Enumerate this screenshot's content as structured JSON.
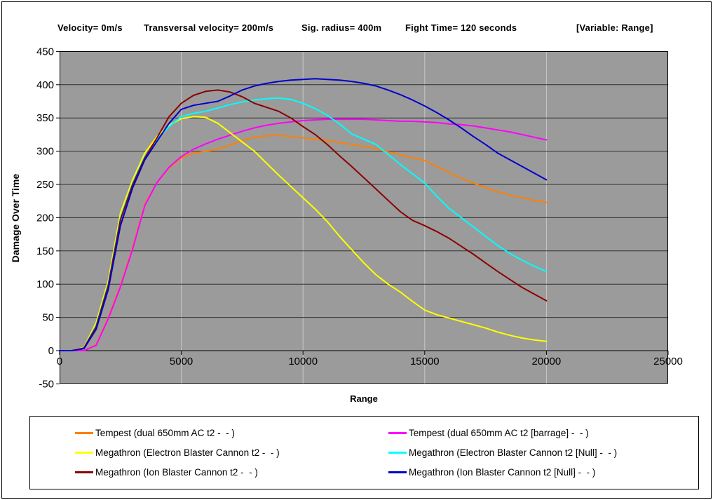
{
  "header": {
    "segments": [
      "Velocity= 0m/s",
      "Transversal velocity= 200m/s",
      "Sig. radius= 400m",
      "Fight Time= 120 seconds",
      "[Variable: Range]"
    ]
  },
  "chart_data": {
    "type": "line",
    "title": "",
    "xlabel": "Range",
    "ylabel": "Damage Over Time",
    "xlim": [
      0,
      25000
    ],
    "ylim": [
      -50,
      450
    ],
    "xticks": [
      0,
      5000,
      10000,
      15000,
      20000,
      25000
    ],
    "yticks": [
      450,
      400,
      350,
      300,
      250,
      200,
      150,
      100,
      50,
      0,
      -50
    ],
    "grid": {
      "horizontal": true,
      "vertical": true
    },
    "legend_position": "bottom",
    "x": [
      0,
      500,
      1000,
      1500,
      2000,
      2500,
      3000,
      3500,
      4000,
      4500,
      5000,
      5500,
      6000,
      6500,
      7000,
      7500,
      8000,
      8500,
      9000,
      9500,
      10000,
      10500,
      11000,
      11500,
      12000,
      12500,
      13000,
      13500,
      14000,
      14500,
      15000,
      15500,
      16000,
      16500,
      17000,
      17500,
      18000,
      18500,
      19000,
      19500,
      20000
    ],
    "series": [
      {
        "name": "Tempest (dual 650mm AC t2 -  - )",
        "color": "#FF8000",
        "values": [
          0,
          0,
          0,
          9,
          50,
          98,
          155,
          220,
          253,
          275,
          290,
          297,
          300,
          303,
          309,
          316,
          321,
          323,
          324,
          322,
          320,
          318,
          316,
          313,
          310,
          307,
          304,
          299,
          295,
          290,
          286,
          277,
          268,
          259,
          252,
          245,
          239,
          234,
          230,
          226,
          223
        ]
      },
      {
        "name": "Tempest (dual 650mm AC t2 [barrage] -  - )",
        "color": "#FF00FF",
        "values": [
          0,
          0,
          0,
          8,
          48,
          96,
          153,
          218,
          253,
          276,
          292,
          303,
          311,
          318,
          324,
          330,
          335,
          339,
          342,
          344,
          346,
          347,
          348,
          348,
          348,
          348,
          347,
          346,
          345,
          345,
          344,
          343,
          341,
          340,
          338,
          335,
          332,
          329,
          325,
          321,
          317
        ]
      },
      {
        "name": "Megathron (Electron Blaster Cannon t2 -  - )",
        "color": "#FFFF00",
        "values": [
          0,
          0,
          5,
          42,
          105,
          207,
          257,
          297,
          322,
          339,
          349,
          352,
          351,
          342,
          328,
          314,
          300,
          282,
          264,
          247,
          230,
          213,
          194,
          172,
          152,
          132,
          114,
          100,
          88,
          74,
          61,
          54,
          49,
          44,
          39,
          34,
          28,
          23,
          19,
          16,
          14
        ]
      },
      {
        "name": "Megathron (Electron Blaster Cannon t2 [Null] -  - )",
        "color": "#00FFFF",
        "values": [
          0,
          0,
          4,
          38,
          100,
          200,
          252,
          292,
          318,
          337,
          352,
          357,
          360,
          365,
          370,
          374,
          377,
          379,
          380,
          378,
          372,
          364,
          354,
          341,
          326,
          318,
          310,
          295,
          280,
          266,
          252,
          232,
          214,
          200,
          186,
          172,
          158,
          146,
          136,
          127,
          119
        ]
      },
      {
        "name": "Megathron (Ion Blaster Cannon t2 -  - )",
        "color": "#8B0000",
        "values": [
          0,
          0,
          4,
          36,
          98,
          197,
          250,
          290,
          320,
          352,
          372,
          384,
          390,
          392,
          389,
          382,
          372,
          366,
          360,
          350,
          337,
          325,
          310,
          293,
          277,
          260,
          243,
          226,
          209,
          196,
          188,
          179,
          169,
          157,
          145,
          132,
          119,
          107,
          95,
          85,
          75
        ]
      },
      {
        "name": "Megathron (Ion Blaster Cannon t2 [Null] -  - )",
        "color": "#0000CD",
        "values": [
          0,
          0,
          3,
          32,
          92,
          188,
          245,
          287,
          315,
          342,
          363,
          369,
          372,
          375,
          383,
          392,
          398,
          402,
          405,
          407,
          408,
          409,
          408,
          407,
          405,
          402,
          398,
          392,
          385,
          377,
          368,
          358,
          347,
          335,
          322,
          310,
          297,
          287,
          277,
          267,
          257
        ]
      }
    ]
  },
  "colors": {
    "page_bg": "#FFFFFF",
    "page_border": "#000000",
    "plot_bg": "#9B9B9B",
    "h_grid": "#303030",
    "v_grid": "#C8C8C8",
    "axis": "#000000",
    "tick_label": "#000000"
  }
}
